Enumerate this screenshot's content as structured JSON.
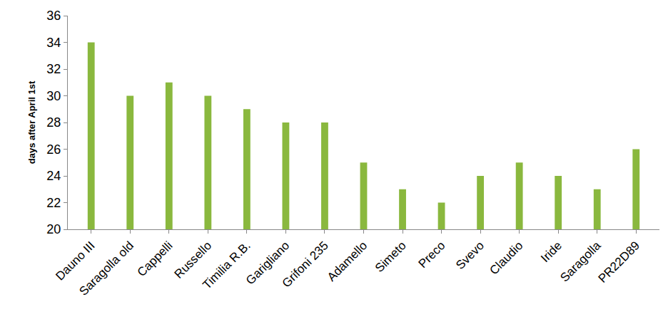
{
  "chart_data": {
    "type": "bar",
    "y_label": "days after April 1st",
    "categories": [
      "Dauno III",
      "Saragolla old",
      "Cappelli",
      "Russello",
      "Timilia R.B.",
      "Garigliano",
      "Grifoni 235",
      "Adamello",
      "Simeto",
      "Preco",
      "Svevo",
      "Claudio",
      "Iride",
      "Saragolla",
      "PR22D89"
    ],
    "values": [
      34,
      30,
      31,
      30,
      29,
      28,
      28,
      25,
      23,
      22,
      24,
      25,
      24,
      23,
      26
    ],
    "color": "#8ab83e",
    "ylim": [
      20,
      36
    ],
    "yticks": [
      20,
      22,
      24,
      26,
      28,
      30,
      32,
      34,
      36
    ],
    "grid": false
  }
}
